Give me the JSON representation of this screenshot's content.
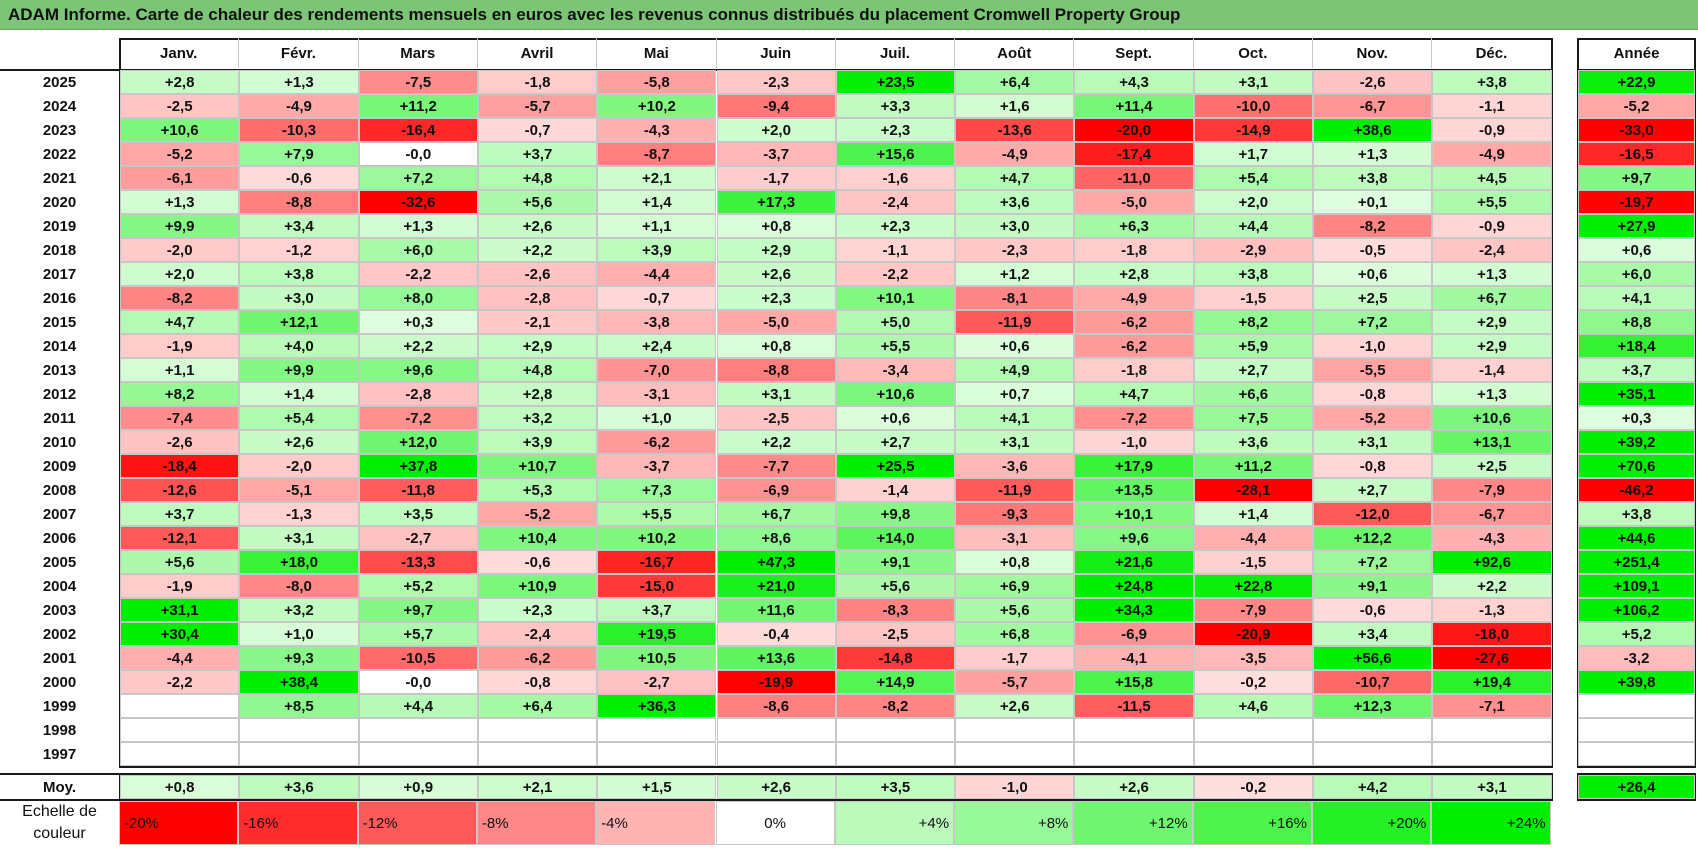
{
  "title": "ADAM Informe. Carte de chaleur des rendements mensuels en euros avec les revenus connus distribués du placement Cromwell Property Group",
  "chart_data": {
    "type": "heatmap",
    "title": "ADAM Informe. Carte de chaleur des rendements mensuels en euros avec les revenus connus distribués du placement Cromwell Property Group",
    "columns": [
      "Janv.",
      "Févr.",
      "Mars",
      "Avril",
      "Mai",
      "Juin",
      "Juil.",
      "Août",
      "Sept.",
      "Oct.",
      "Nov.",
      "Déc."
    ],
    "annual_header": "Année",
    "rows": [
      {
        "year": "2025",
        "values": [
          "+2,8",
          "+1,3",
          "-7,5",
          "-1,8",
          "-5,8",
          "-2,3",
          "+23,5",
          "+6,4",
          "+4,3",
          "+3,1",
          "-2,6",
          "+3,8"
        ],
        "annual": "+22,9"
      },
      {
        "year": "2024",
        "values": [
          "-2,5",
          "-4,9",
          "+11,2",
          "-5,7",
          "+10,2",
          "-9,4",
          "+3,3",
          "+1,6",
          "+11,4",
          "-10,0",
          "-6,7",
          "-1,1"
        ],
        "annual": "-5,2"
      },
      {
        "year": "2023",
        "values": [
          "+10,6",
          "-10,3",
          "-16,4",
          "-0,7",
          "-4,3",
          "+2,0",
          "+2,3",
          "-13,6",
          "-20,0",
          "-14,9",
          "+38,6",
          "-0,9"
        ],
        "annual": "-33,0"
      },
      {
        "year": "2022",
        "values": [
          "-5,2",
          "+7,9",
          "-0,0",
          "+3,7",
          "-8,7",
          "-3,7",
          "+15,6",
          "-4,9",
          "-17,4",
          "+1,7",
          "+1,3",
          "-4,9"
        ],
        "annual": "-16,5"
      },
      {
        "year": "2021",
        "values": [
          "-6,1",
          "-0,6",
          "+7,2",
          "+4,8",
          "+2,1",
          "-1,7",
          "-1,6",
          "+4,7",
          "-11,0",
          "+5,4",
          "+3,8",
          "+4,5"
        ],
        "annual": "+9,7"
      },
      {
        "year": "2020",
        "values": [
          "+1,3",
          "-8,8",
          "-32,6",
          "+5,6",
          "+1,4",
          "+17,3",
          "-2,4",
          "+3,6",
          "-5,0",
          "+2,0",
          "+0,1",
          "+5,5"
        ],
        "annual": "-19,7"
      },
      {
        "year": "2019",
        "values": [
          "+9,9",
          "+3,4",
          "+1,3",
          "+2,6",
          "+1,1",
          "+0,8",
          "+2,3",
          "+3,0",
          "+6,3",
          "+4,4",
          "-8,2",
          "-0,9"
        ],
        "annual": "+27,9"
      },
      {
        "year": "2018",
        "values": [
          "-2,0",
          "-1,2",
          "+6,0",
          "+2,2",
          "+3,9",
          "+2,9",
          "-1,1",
          "-2,3",
          "-1,8",
          "-2,9",
          "-0,5",
          "-2,4"
        ],
        "annual": "+0,6"
      },
      {
        "year": "2017",
        "values": [
          "+2,0",
          "+3,8",
          "-2,2",
          "-2,6",
          "-4,4",
          "+2,6",
          "-2,2",
          "+1,2",
          "+2,8",
          "+3,8",
          "+0,6",
          "+1,3"
        ],
        "annual": "+6,0"
      },
      {
        "year": "2016",
        "values": [
          "-8,2",
          "+3,0",
          "+8,0",
          "-2,8",
          "-0,7",
          "+2,3",
          "+10,1",
          "-8,1",
          "-4,9",
          "-1,5",
          "+2,5",
          "+6,7"
        ],
        "annual": "+4,1"
      },
      {
        "year": "2015",
        "values": [
          "+4,7",
          "+12,1",
          "+0,3",
          "-2,1",
          "-3,8",
          "-5,0",
          "+5,0",
          "-11,9",
          "-6,2",
          "+8,2",
          "+7,2",
          "+2,9"
        ],
        "annual": "+8,8"
      },
      {
        "year": "2014",
        "values": [
          "-1,9",
          "+4,0",
          "+2,2",
          "+2,9",
          "+2,4",
          "+0,8",
          "+5,5",
          "+0,6",
          "-6,2",
          "+5,9",
          "-1,0",
          "+2,9"
        ],
        "annual": "+18,4"
      },
      {
        "year": "2013",
        "values": [
          "+1,1",
          "+9,9",
          "+9,6",
          "+4,8",
          "-7,0",
          "-8,8",
          "-3,4",
          "+4,9",
          "-1,8",
          "+2,7",
          "-5,5",
          "-1,4"
        ],
        "annual": "+3,7"
      },
      {
        "year": "2012",
        "values": [
          "+8,2",
          "+1,4",
          "-2,8",
          "+2,8",
          "-3,1",
          "+3,1",
          "+10,6",
          "+0,7",
          "+4,7",
          "+6,6",
          "-0,8",
          "+1,3"
        ],
        "annual": "+35,1"
      },
      {
        "year": "2011",
        "values": [
          "-7,4",
          "+5,4",
          "-7,2",
          "+3,2",
          "+1,0",
          "-2,5",
          "+0,6",
          "+4,1",
          "-7,2",
          "+7,5",
          "-5,2",
          "+10,6"
        ],
        "annual": "+0,3"
      },
      {
        "year": "2010",
        "values": [
          "-2,6",
          "+2,6",
          "+12,0",
          "+3,9",
          "-6,2",
          "+2,2",
          "+2,7",
          "+3,1",
          "-1,0",
          "+3,6",
          "+3,1",
          "+13,1"
        ],
        "annual": "+39,2"
      },
      {
        "year": "2009",
        "values": [
          "-18,4",
          "-2,0",
          "+37,8",
          "+10,7",
          "-3,7",
          "-7,7",
          "+25,5",
          "-3,6",
          "+17,9",
          "+11,2",
          "-0,8",
          "+2,5"
        ],
        "annual": "+70,6"
      },
      {
        "year": "2008",
        "values": [
          "-12,6",
          "-5,1",
          "-11,8",
          "+5,3",
          "+7,3",
          "-6,9",
          "-1,4",
          "-11,9",
          "+13,5",
          "-28,1",
          "+2,7",
          "-7,9"
        ],
        "annual": "-46,2"
      },
      {
        "year": "2007",
        "values": [
          "+3,7",
          "-1,3",
          "+3,5",
          "-5,2",
          "+5,5",
          "+6,7",
          "+9,8",
          "-9,3",
          "+10,1",
          "+1,4",
          "-12,0",
          "-6,7"
        ],
        "annual": "+3,8"
      },
      {
        "year": "2006",
        "values": [
          "-12,1",
          "+3,1",
          "-2,7",
          "+10,4",
          "+10,2",
          "+8,6",
          "+14,0",
          "-3,1",
          "+9,6",
          "-4,4",
          "+12,2",
          "-4,3"
        ],
        "annual": "+44,6"
      },
      {
        "year": "2005",
        "values": [
          "+5,6",
          "+18,0",
          "-13,3",
          "-0,6",
          "-16,7",
          "+47,3",
          "+9,1",
          "+0,8",
          "+21,6",
          "-1,5",
          "+7,2",
          "+92,6"
        ],
        "annual": "+251,4"
      },
      {
        "year": "2004",
        "values": [
          "-1,9",
          "-8,0",
          "+5,2",
          "+10,9",
          "-15,0",
          "+21,0",
          "+5,6",
          "+6,9",
          "+24,8",
          "+22,8",
          "+9,1",
          "+2,2"
        ],
        "annual": "+109,1"
      },
      {
        "year": "2003",
        "values": [
          "+31,1",
          "+3,2",
          "+9,7",
          "+2,3",
          "+3,7",
          "+11,6",
          "-8,3",
          "+5,6",
          "+34,3",
          "-7,9",
          "-0,6",
          "-1,3"
        ],
        "annual": "+106,2"
      },
      {
        "year": "2002",
        "values": [
          "+30,4",
          "+1,0",
          "+5,7",
          "-2,4",
          "+19,5",
          "-0,4",
          "-2,5",
          "+6,8",
          "-6,9",
          "-20,9",
          "+3,4",
          "-18,0"
        ],
        "annual": "+5,2"
      },
      {
        "year": "2001",
        "values": [
          "-4,4",
          "+9,3",
          "-10,5",
          "-6,2",
          "+10,5",
          "+13,6",
          "-14,8",
          "-1,7",
          "-4,1",
          "-3,5",
          "+56,6",
          "-27,6"
        ],
        "annual": "-3,2"
      },
      {
        "year": "2000",
        "values": [
          "-2,2",
          "+38,4",
          "-0,0",
          "-0,8",
          "-2,7",
          "-19,9",
          "+14,9",
          "-5,7",
          "+15,8",
          "-0,2",
          "-10,7",
          "+19,4"
        ],
        "annual": "+39,8"
      },
      {
        "year": "1999",
        "values": [
          "",
          "+8,5",
          "+4,4",
          "+6,4",
          "+36,3",
          "-8,6",
          "-8,2",
          "+2,6",
          "-11,5",
          "+4,6",
          "+12,3",
          "-7,1"
        ],
        "annual": ""
      },
      {
        "year": "1998",
        "values": [
          "",
          "",
          "",
          "",
          "",
          "",
          "",
          "",
          "",
          "",
          "",
          ""
        ],
        "annual": ""
      },
      {
        "year": "1997",
        "values": [
          "",
          "",
          "",
          "",
          "",
          "",
          "",
          "",
          "",
          "",
          "",
          ""
        ],
        "annual": ""
      }
    ],
    "average": {
      "label": "Moy.",
      "values": [
        "+0,8",
        "+3,6",
        "+0,9",
        "+2,1",
        "+1,5",
        "+2,6",
        "+3,5",
        "-1,0",
        "+2,6",
        "-0,2",
        "+4,2",
        "+3,1"
      ],
      "annual": "+26,4"
    },
    "legend": {
      "label_line1": "Echelle de",
      "label_line2": "couleur",
      "steps": [
        {
          "label": "-20%",
          "value": -20
        },
        {
          "label": "-16%",
          "value": -16
        },
        {
          "label": "-12%",
          "value": -12
        },
        {
          "label": "-8%",
          "value": -8
        },
        {
          "label": "-4%",
          "value": -4
        },
        {
          "label": "0%",
          "value": 0
        },
        {
          "label": "+4%",
          "value": 4
        },
        {
          "label": "+8%",
          "value": 8
        },
        {
          "label": "+12%",
          "value": 12
        },
        {
          "label": "+16%",
          "value": 16
        },
        {
          "label": "+20%",
          "value": 20
        },
        {
          "label": "+24%",
          "value": 24
        }
      ]
    },
    "color_scale": {
      "negative_max": "#ff0000",
      "positive_max": "#00ee00",
      "neutral": "#ffffff",
      "neg_limit": -20,
      "pos_limit": 24
    }
  }
}
